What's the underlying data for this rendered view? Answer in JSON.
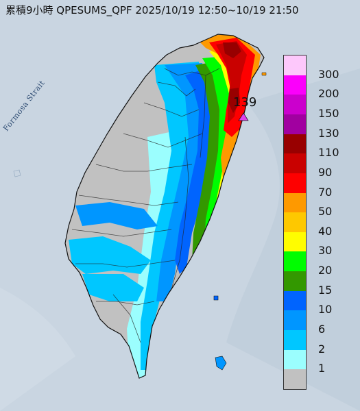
{
  "title": "累積9小時 QPESUMS_QPF 2025/10/19 12:50~10/19 21:50",
  "strait_label": "Formosa Strait",
  "max_marker": {
    "value": "139",
    "color": "#e040e8"
  },
  "legend": [
    {
      "label": "300",
      "color": "#fdc8fb"
    },
    {
      "label": "200",
      "color": "#fb00fb"
    },
    {
      "label": "150",
      "color": "#cb00cd"
    },
    {
      "label": "130",
      "color": "#a100a0"
    },
    {
      "label": "110",
      "color": "#980000"
    },
    {
      "label": "90",
      "color": "#c90100"
    },
    {
      "label": "70",
      "color": "#fe0000"
    },
    {
      "label": "50",
      "color": "#fe9900"
    },
    {
      "label": "40",
      "color": "#fec800"
    },
    {
      "label": "30",
      "color": "#fffd00"
    },
    {
      "label": "20",
      "color": "#00fd00"
    },
    {
      "label": "15",
      "color": "#339800"
    },
    {
      "label": "10",
      "color": "#0064fe"
    },
    {
      "label": "6",
      "color": "#0096ff"
    },
    {
      "label": "2",
      "color": "#00c7ff"
    },
    {
      "label": "1",
      "color": "#9bfefe"
    },
    {
      "label": "",
      "color": "#c1c1c1"
    }
  ],
  "legend_zero_label": "1"
}
